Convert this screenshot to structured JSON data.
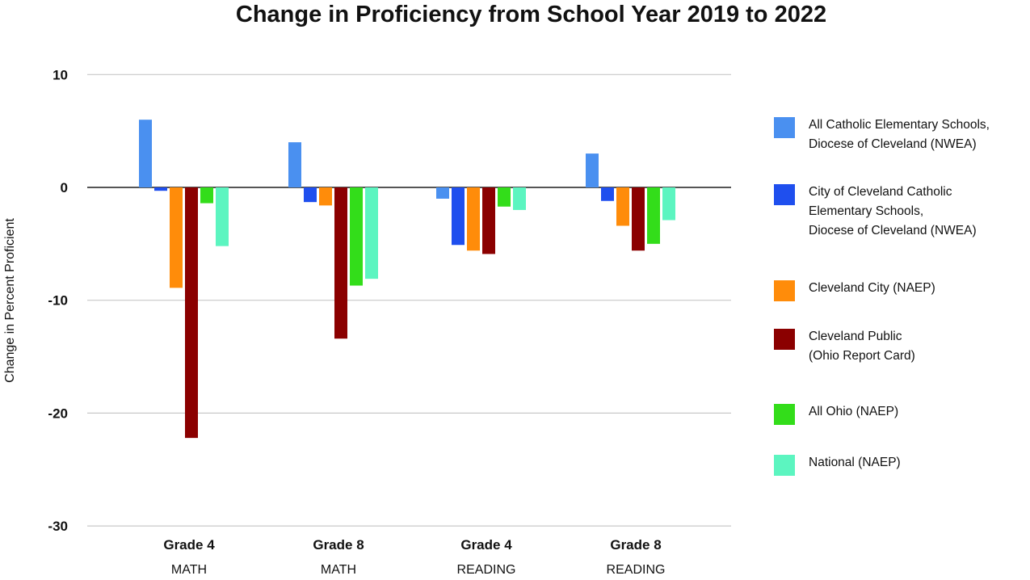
{
  "chart_data": {
    "type": "bar",
    "title": "Change in Proficiency from School Year 2019 to 2022",
    "xlabel": "",
    "ylabel": "Change in Percent Proficient",
    "ylim": [
      -30,
      10
    ],
    "yticks": [
      10,
      0,
      -10,
      -20,
      -30
    ],
    "grid": true,
    "legend_position": "right",
    "categories": [
      {
        "line1": "Grade 4",
        "line2": "MATH"
      },
      {
        "line1": "Grade 8",
        "line2": "MATH"
      },
      {
        "line1": "Grade 4",
        "line2": "READING"
      },
      {
        "line1": "Grade 8",
        "line2": "READING"
      }
    ],
    "series": [
      {
        "name": "All Catholic Elementary Schools, Diocese of Cleveland (NWEA)",
        "legend_lines": [
          "All Catholic Elementary Schools,",
          "Diocese of Cleveland (NWEA)"
        ],
        "color": "#4a90f0",
        "values": [
          6.0,
          4.0,
          -1.0,
          3.0
        ]
      },
      {
        "name": "City of Cleveland Catholic Elementary Schools, Diocese of Cleveland (NWEA)",
        "legend_lines": [
          "City of Cleveland Catholic",
          "Elementary Schools,",
          "Diocese of Cleveland (NWEA)"
        ],
        "color": "#1f4fee",
        "values": [
          -0.3,
          -1.3,
          -5.1,
          -1.2
        ]
      },
      {
        "name": "Cleveland City (NAEP)",
        "legend_lines": [
          "Cleveland City (NAEP)"
        ],
        "color": "#ff8c0a",
        "values": [
          -8.9,
          -1.6,
          -5.6,
          -3.4
        ]
      },
      {
        "name": "Cleveland Public (Ohio Report Card)",
        "legend_lines": [
          "Cleveland Public",
          "(Ohio Report Card)"
        ],
        "color": "#8b0000",
        "values": [
          -22.2,
          -13.4,
          -5.9,
          -5.6
        ]
      },
      {
        "name": "All Ohio (NAEP)",
        "legend_lines": [
          "All Ohio (NAEP)"
        ],
        "color": "#33dd1a",
        "values": [
          -1.4,
          -8.7,
          -1.7,
          -5.0
        ]
      },
      {
        "name": "National (NAEP)",
        "legend_lines": [
          "National (NAEP)"
        ],
        "color": "#5cf5c0",
        "values": [
          -5.2,
          -8.1,
          -2.0,
          -2.9
        ]
      }
    ]
  }
}
